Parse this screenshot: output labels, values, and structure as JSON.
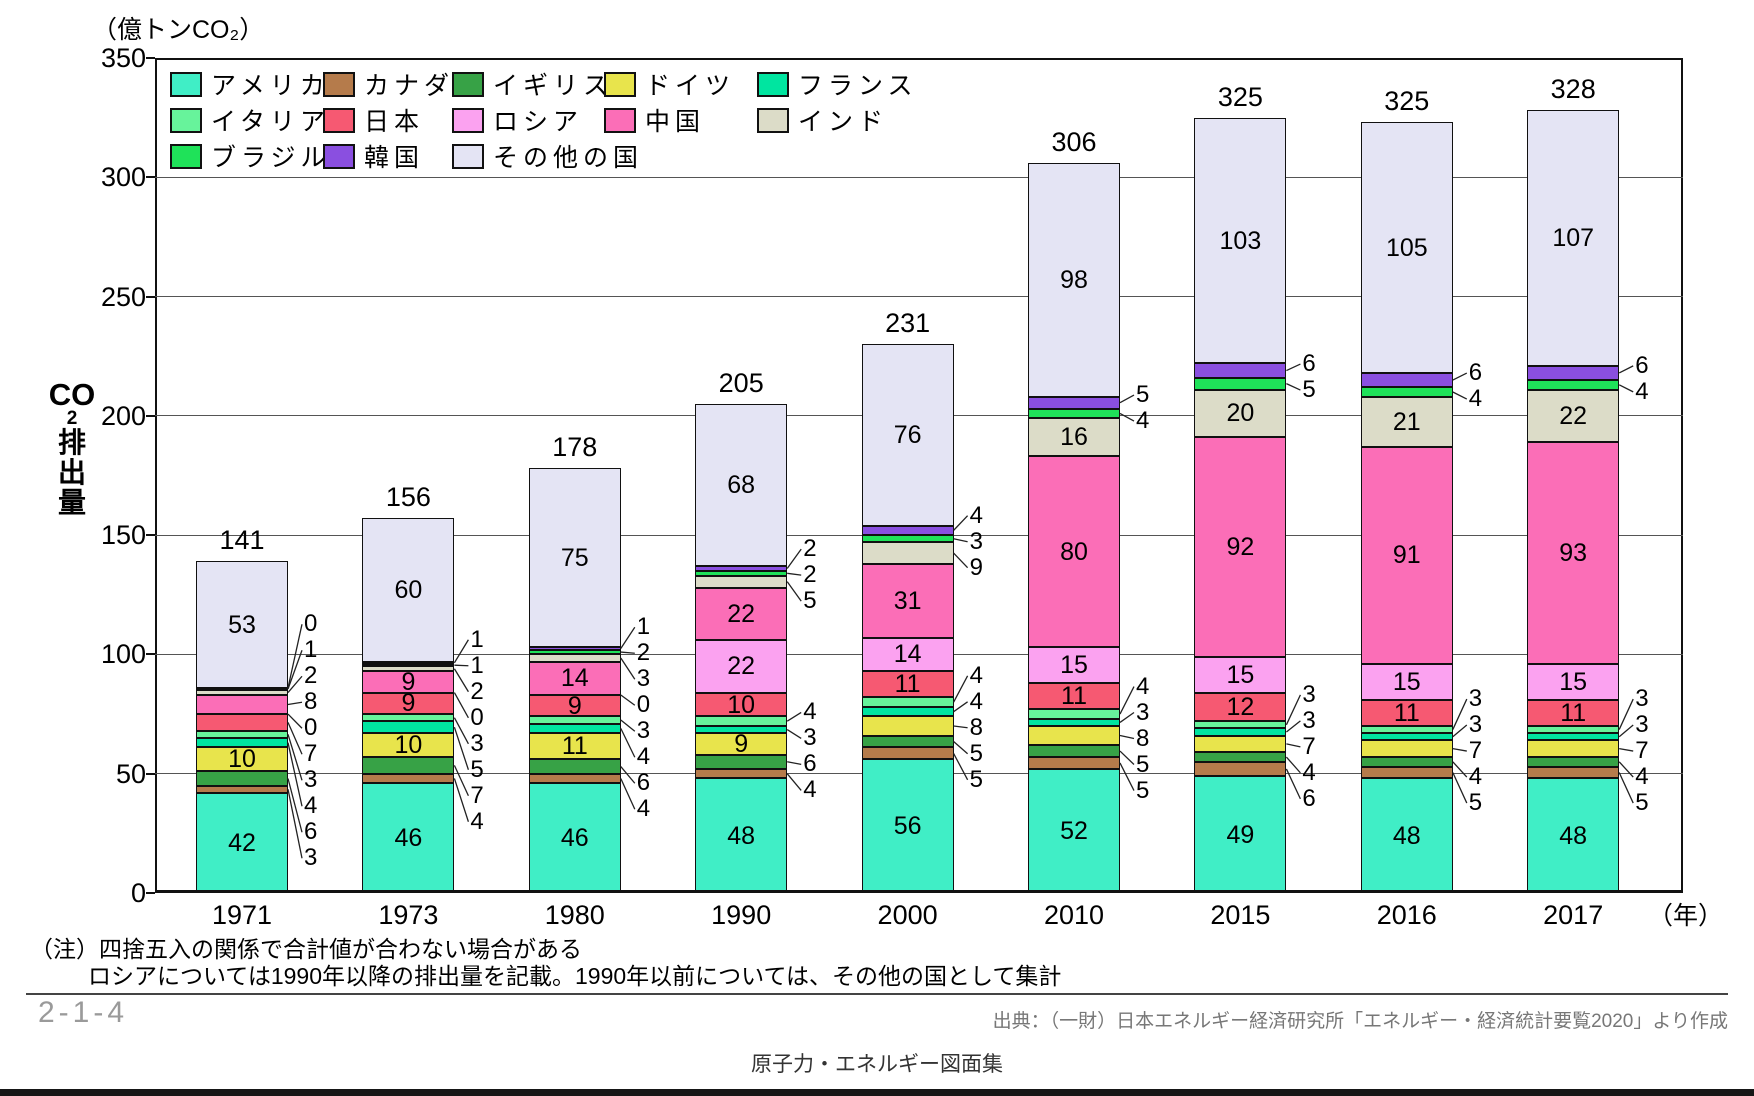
{
  "y_axis": {
    "unit_label": "（億トンCO₂）",
    "label_main": "CO",
    "label_sub": "2",
    "label_rest": "排出量",
    "ticks": [
      0,
      50,
      100,
      150,
      200,
      250,
      300,
      350
    ]
  },
  "x_axis": {
    "unit_label": "（年）"
  },
  "chart_data": {
    "type": "stacked-bar",
    "title": "（億トンCO₂）",
    "ylabel": "CO2排出量",
    "ylim": [
      0,
      350
    ],
    "grid": true,
    "legend_position": "top-left-inside",
    "categories": [
      "1971",
      "1973",
      "1980",
      "1990",
      "2000",
      "2010",
      "2015",
      "2016",
      "2017"
    ],
    "totals": [
      141,
      156,
      178,
      205,
      231,
      306,
      325,
      325,
      328
    ],
    "series": [
      {
        "key": "america",
        "label": "アメリカ",
        "color": "#40EEC6",
        "values": [
          42,
          46,
          46,
          48,
          56,
          52,
          49,
          48,
          48
        ],
        "modes": [
          "in",
          "in",
          "in",
          "in",
          "in",
          "in",
          "in",
          "in",
          "in"
        ]
      },
      {
        "key": "canada",
        "label": "カナダ",
        "color": "#B57B4B",
        "values": [
          3,
          4,
          4,
          4,
          5,
          5,
          6,
          5,
          5
        ],
        "modes": [
          "out",
          "out",
          "out",
          "out",
          "out",
          "out",
          "out",
          "out",
          "out"
        ]
      },
      {
        "key": "uk",
        "label": "イギリス",
        "color": "#37A246",
        "values": [
          6,
          7,
          6,
          6,
          5,
          5,
          4,
          4,
          4
        ],
        "modes": [
          "out",
          "out",
          "out",
          "out",
          "out",
          "out",
          "out",
          "out",
          "out"
        ]
      },
      {
        "key": "germany",
        "label": "ドイツ",
        "color": "#E8E44C",
        "values": [
          10,
          10,
          11,
          9,
          8,
          8,
          7,
          7,
          7
        ],
        "modes": [
          "in",
          "in",
          "in",
          "in",
          "out",
          "out",
          "out",
          "out",
          "out"
        ]
      },
      {
        "key": "france",
        "label": "フランス",
        "color": "#00E5A0",
        "values": [
          4,
          5,
          4,
          3,
          4,
          3,
          3,
          3,
          3
        ],
        "modes": [
          "out",
          "out",
          "out",
          "out",
          "out",
          "out",
          "out",
          "out",
          "out"
        ]
      },
      {
        "key": "italy",
        "label": "イタリア",
        "color": "#67F39B",
        "values": [
          3,
          3,
          3,
          4,
          4,
          4,
          3,
          3,
          3
        ],
        "modes": [
          "out",
          "out",
          "out",
          "out",
          "out",
          "out",
          "out",
          "out",
          "out"
        ]
      },
      {
        "key": "japan",
        "label": "日本",
        "color": "#F65972",
        "values": [
          7,
          9,
          9,
          10,
          11,
          11,
          12,
          11,
          11
        ],
        "modes": [
          "out",
          "in",
          "in",
          "in",
          "in",
          "in",
          "in",
          "in",
          "in"
        ]
      },
      {
        "key": "russia",
        "label": "ロシア",
        "color": "#FBA2F0",
        "values": [
          0,
          0,
          0,
          22,
          14,
          15,
          15,
          15,
          15
        ],
        "modes": [
          "out",
          "out",
          "out",
          "in",
          "in",
          "in",
          "in",
          "in",
          "in"
        ]
      },
      {
        "key": "china",
        "label": "中国",
        "color": "#FB6EB7",
        "values": [
          8,
          9,
          14,
          22,
          31,
          80,
          92,
          91,
          93
        ],
        "modes": [
          "out",
          "in",
          "in",
          "in",
          "in",
          "in",
          "in",
          "in",
          "in"
        ]
      },
      {
        "key": "india",
        "label": "インド",
        "color": "#DCDCC8",
        "values": [
          2,
          2,
          3,
          5,
          9,
          16,
          20,
          21,
          22
        ],
        "modes": [
          "out",
          "out",
          "out",
          "out",
          "out",
          "in",
          "in",
          "in",
          "in"
        ]
      },
      {
        "key": "brazil",
        "label": "ブラジル",
        "color": "#1FE259",
        "values": [
          1,
          1,
          2,
          2,
          3,
          4,
          5,
          4,
          4
        ],
        "modes": [
          "out",
          "out",
          "out",
          "out",
          "out",
          "out",
          "out",
          "out",
          "out"
        ]
      },
      {
        "key": "korea",
        "label": "韓国",
        "color": "#8A4FE0",
        "values": [
          0,
          1,
          1,
          2,
          4,
          5,
          6,
          6,
          6
        ],
        "modes": [
          "out",
          "out",
          "out",
          "out",
          "out",
          "out",
          "out",
          "out",
          "out"
        ]
      },
      {
        "key": "other",
        "label": "その他の国",
        "color": "#E4E4F4",
        "values": [
          53,
          60,
          75,
          68,
          76,
          98,
          103,
          105,
          107
        ],
        "modes": [
          "in",
          "in",
          "in",
          "in",
          "in",
          "in",
          "in",
          "in",
          "in"
        ]
      }
    ]
  },
  "notes": {
    "line1": "（注）四捨五入の関係で合計値が合わない場合がある",
    "line2": "ロシアについては1990年以降の排出量を記載。1990年以前については、その他の国として集計"
  },
  "footer": {
    "page_code": "2-1-4",
    "source": "出典：（一財）日本エネルギー経済研究所「エネルギー・経済統計要覧2020」より作成",
    "booklet": "原子力・エネルギー図面集"
  }
}
